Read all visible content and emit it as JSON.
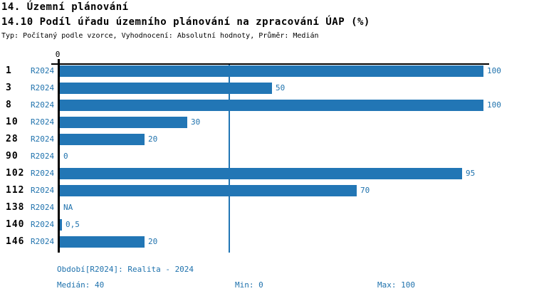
{
  "header": {
    "title": "14. Územní plánování",
    "subtitle": "14.10 Podíl úřadu územního plánování na zpracování ÚAP (%)",
    "meta": "Typ: Počítaný podle vzorce, Vyhodnocení: Absolutní hodnoty, Průměr: Medián"
  },
  "chart_data": {
    "type": "bar",
    "orientation": "horizontal",
    "title": "14.10 Podíl úřadu územního plánování na zpracování ÚAP (%)",
    "categories": [
      "1",
      "3",
      "8",
      "10",
      "28",
      "90",
      "102",
      "112",
      "138",
      "140",
      "146"
    ],
    "series": [
      {
        "name": "R2024",
        "values": [
          100,
          50,
          100,
          30,
          20,
          0,
          95,
          70,
          null,
          0.5,
          20
        ],
        "value_labels": [
          "100",
          "50",
          "100",
          "30",
          "20",
          "0",
          "95",
          "70",
          "NA",
          "0,5",
          "20"
        ]
      }
    ],
    "xlim": [
      0,
      100
    ],
    "x_tick_labels": [
      "0"
    ],
    "grid": false,
    "legend_position": "bottom",
    "reference_line": {
      "label": "Medián",
      "value": 40
    },
    "median": 40,
    "min": 0,
    "max": 100,
    "bar_color": "#2276b5",
    "accent_text_color": "#1f72ad"
  },
  "footer": {
    "period": "Období[R2024]: Realita - 2024",
    "median": "Medián: 40",
    "min": "Min: 0",
    "max": "Max: 100"
  }
}
